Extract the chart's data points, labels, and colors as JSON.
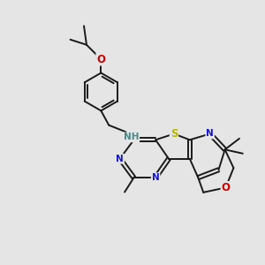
{
  "background_color": "#e5e5e5",
  "bond_color": "#1a1a1a",
  "bond_width": 1.4,
  "atom_colors": {
    "N": "#1515cc",
    "S": "#b8b800",
    "O": "#cc0000",
    "NH": "#4a8888",
    "C": "#1a1a1a"
  },
  "font_size_atom": 7.5,
  "fig_bg": "#e5e5e5"
}
